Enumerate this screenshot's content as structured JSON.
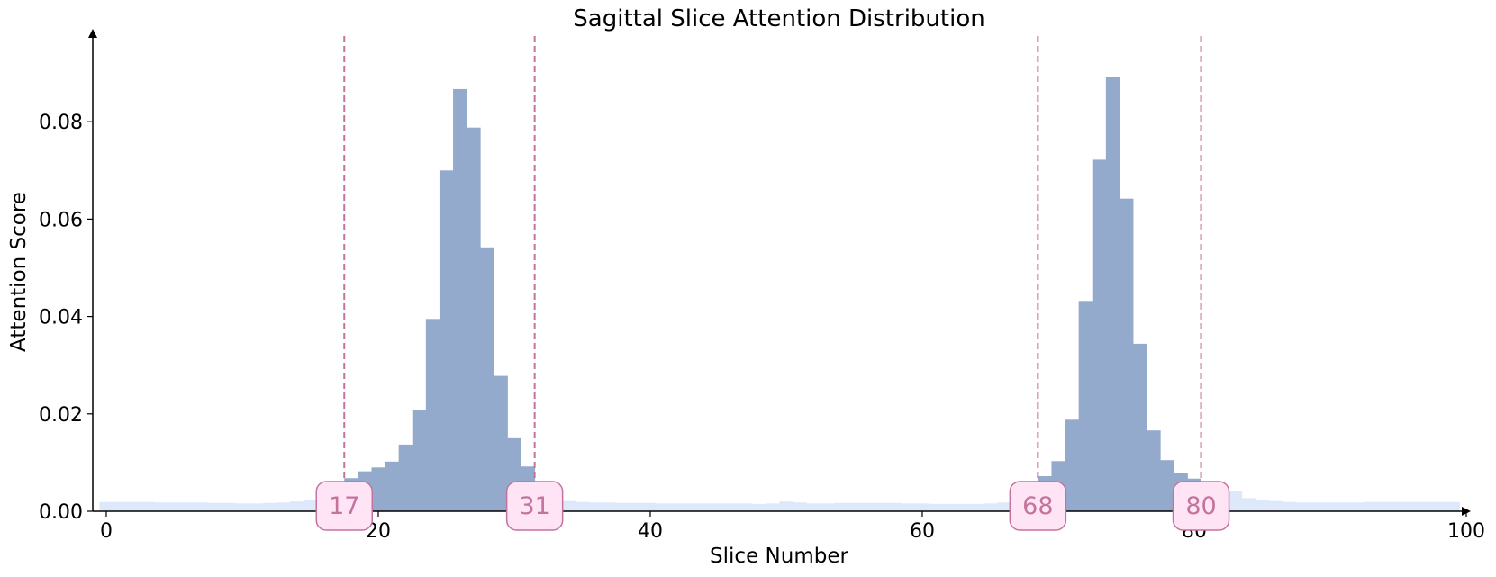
{
  "chart_data": {
    "type": "bar",
    "title": "Sagittal Slice Attention Distribution",
    "xlabel": "Slice Number",
    "ylabel": "Attention Score",
    "xlim": [
      -1,
      100
    ],
    "ylim": [
      0,
      0.097
    ],
    "x_ticks": [
      "0",
      "20",
      "40",
      "60",
      "80",
      "100"
    ],
    "x_tick_values": [
      0,
      20,
      40,
      60,
      80,
      100
    ],
    "y_ticks": [
      "0.00",
      "0.02",
      "0.04",
      "0.06",
      "0.08"
    ],
    "y_tick_values": [
      0,
      0.02,
      0.04,
      0.06,
      0.08
    ],
    "grid": false,
    "colors": {
      "highlight": "#94aacc",
      "background": "#dde8fb",
      "marker_line": "#c4739c",
      "marker_fill": "#ffe4f6",
      "marker_text": "#c4739c"
    },
    "highlight_ranges": [
      [
        17,
        31
      ],
      [
        68,
        80
      ]
    ],
    "values": [
      0.0019,
      0.0019,
      0.0019,
      0.0019,
      0.0018,
      0.0018,
      0.0018,
      0.0018,
      0.0017,
      0.0017,
      0.0016,
      0.0016,
      0.0017,
      0.0018,
      0.002,
      0.0022,
      0.0025,
      0.003,
      0.0068,
      0.0082,
      0.009,
      0.0102,
      0.0137,
      0.0208,
      0.0395,
      0.07,
      0.0867,
      0.0788,
      0.0542,
      0.0278,
      0.015,
      0.0092,
      0.004,
      0.0024,
      0.0021,
      0.0019,
      0.0018,
      0.0018,
      0.0017,
      0.0017,
      0.0017,
      0.0016,
      0.0016,
      0.0016,
      0.0016,
      0.0016,
      0.0016,
      0.0016,
      0.0015,
      0.0016,
      0.002,
      0.0018,
      0.0016,
      0.0016,
      0.0017,
      0.0017,
      0.0017,
      0.0017,
      0.0017,
      0.0016,
      0.0016,
      0.0015,
      0.0015,
      0.0015,
      0.0015,
      0.0016,
      0.0018,
      0.0021,
      0.003,
      0.0072,
      0.0103,
      0.0188,
      0.0432,
      0.0722,
      0.0892,
      0.0642,
      0.0344,
      0.0166,
      0.0105,
      0.0078,
      0.0067,
      0.0055,
      0.0048,
      0.0041,
      0.0027,
      0.0023,
      0.0021,
      0.0019,
      0.0018,
      0.0018,
      0.0018,
      0.0018,
      0.0018,
      0.0019,
      0.0019,
      0.0019,
      0.0019,
      0.0019,
      0.0019,
      0.0019
    ],
    "markers": [
      {
        "x": 17.5,
        "label": "17"
      },
      {
        "x": 31.5,
        "label": "31"
      },
      {
        "x": 68.5,
        "label": "68"
      },
      {
        "x": 80.5,
        "label": "80"
      }
    ]
  }
}
